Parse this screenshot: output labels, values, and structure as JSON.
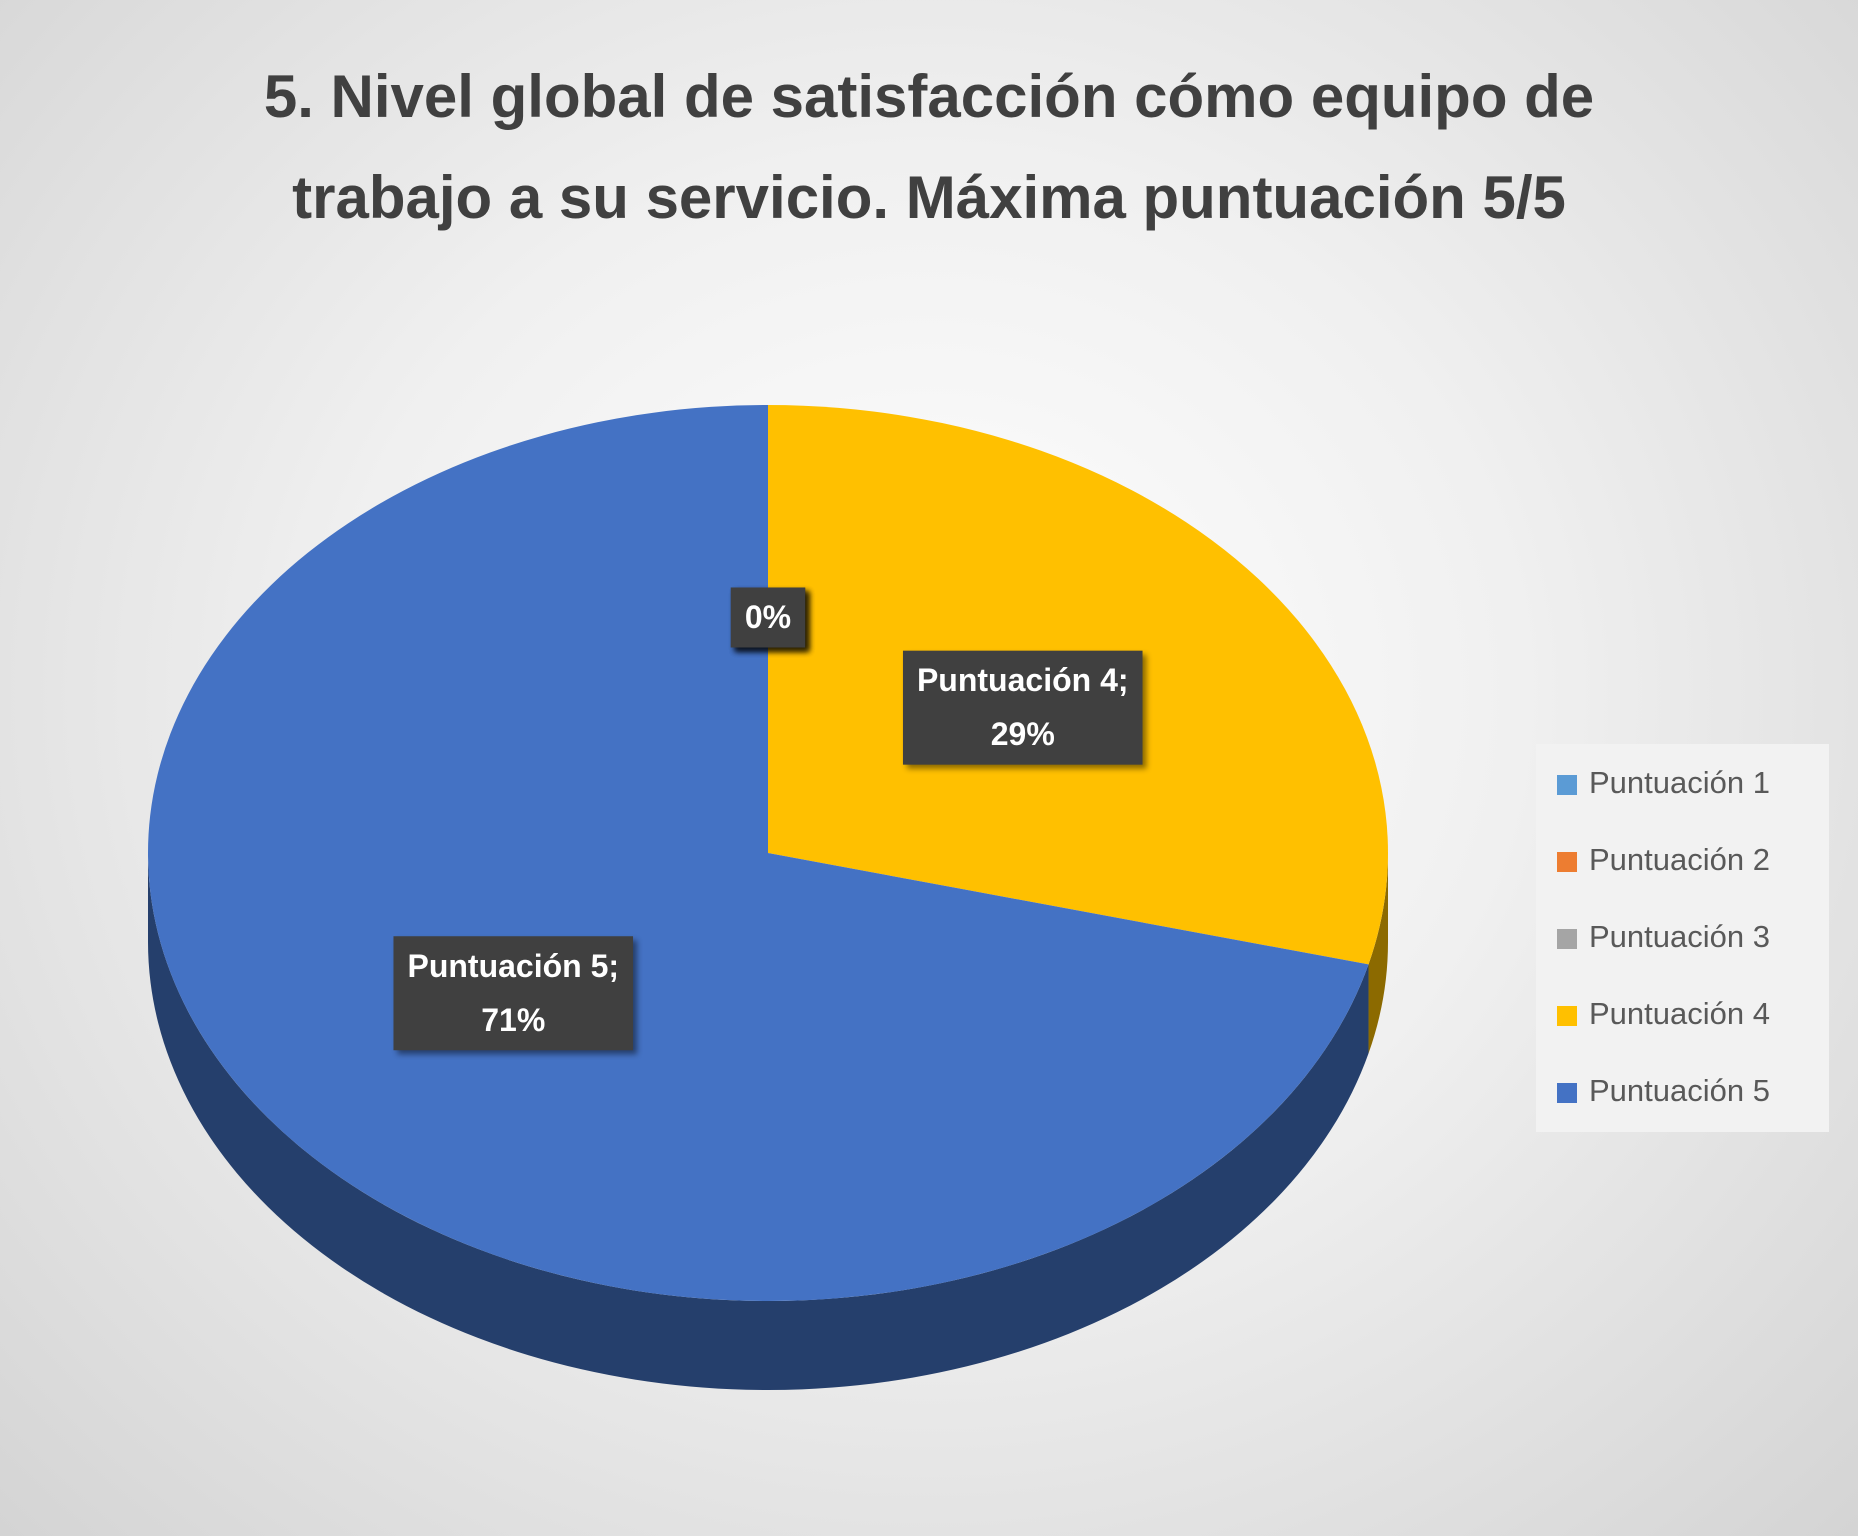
{
  "chart_data": {
    "type": "pie3d",
    "title": "5. Nivel global de satisfacción cómo equipo de trabajo a su servicio. Máxima puntuación 5/5",
    "categories": [
      "Puntuación 1",
      "Puntuación 2",
      "Puntuación 3",
      "Puntuación 4",
      "Puntuación 5"
    ],
    "values": [
      0,
      0,
      0,
      29,
      71
    ],
    "value_labels": [
      "0%",
      "0%",
      "0%",
      "Puntuación 4; 29%",
      "Puntuación 5; 71%"
    ],
    "colors": [
      "#5b9bd5",
      "#ed7d31",
      "#a5a5a5",
      "#ffc000",
      "#4472c4"
    ],
    "legend": "right"
  }
}
